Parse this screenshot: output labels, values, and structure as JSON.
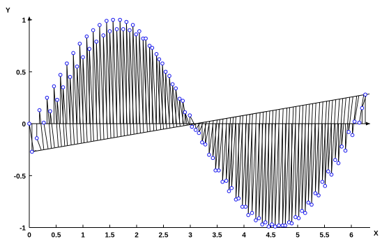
{
  "chart_data": {
    "type": "stem-line",
    "xlabel": "X",
    "ylabel": "Y",
    "xlim": [
      0,
      6.35
    ],
    "ylim": [
      -1,
      1
    ],
    "x_ticks": [
      0,
      0.5,
      1,
      1.5,
      2,
      2.5,
      3,
      3.5,
      4,
      4.5,
      5,
      5.5,
      6
    ],
    "x_tick_labels": [
      "0",
      "0.5",
      "1",
      "1.5",
      "2",
      "2.5",
      "3",
      "3.5",
      "4",
      "4.5",
      "5",
      "5.5",
      "6"
    ],
    "y_ticks": [
      -1,
      -0.5,
      0,
      0.5,
      1
    ],
    "y_tick_labels": [
      "-1",
      "-0.5",
      "0",
      "0.5",
      "1"
    ],
    "series": [
      {
        "x": [
          0,
          0.05,
          0.14,
          0.19,
          0.27,
          0.33,
          0.39,
          0.46,
          0.52,
          0.58,
          0.63,
          0.7,
          0.76,
          0.82,
          0.89,
          0.94,
          1.0,
          1.07,
          1.12,
          1.19,
          1.25,
          1.31,
          1.38,
          1.44,
          1.5,
          1.56,
          1.63,
          1.69,
          1.75,
          1.81,
          1.87,
          1.93,
          1.99,
          2.05,
          2.12,
          2.17,
          2.24,
          2.29,
          2.37,
          2.42,
          2.48,
          2.54,
          2.61,
          2.67,
          2.73,
          2.8,
          2.86,
          2.9,
          2.99,
          3.03,
          3.1,
          3.16,
          3.22,
          3.28,
          3.35,
          3.42,
          3.47,
          3.53,
          3.6,
          3.67,
          3.72,
          3.77,
          3.85,
          3.9,
          3.97,
          4.03,
          4.08,
          4.15,
          4.22,
          4.28,
          4.34,
          4.4,
          4.46,
          4.52,
          4.58,
          4.65,
          4.72,
          4.77,
          4.84,
          4.89,
          4.96,
          5.02,
          5.08,
          5.14,
          5.2,
          5.26,
          5.33,
          5.39,
          5.46,
          5.51,
          5.57,
          5.63,
          5.7,
          5.76,
          5.82,
          5.89,
          5.95,
          6.02,
          6.06,
          6.15,
          6.2,
          6.26
        ],
        "y": [
          0,
          -0.27,
          -0.14,
          0.13,
          0.01,
          0.25,
          0.12,
          0.36,
          0.23,
          0.47,
          0.35,
          0.58,
          0.45,
          0.68,
          0.55,
          0.77,
          0.64,
          0.84,
          0.72,
          0.9,
          0.79,
          0.95,
          0.85,
          0.99,
          0.89,
          1.0,
          0.91,
          1.0,
          0.91,
          0.98,
          0.9,
          0.95,
          0.86,
          0.89,
          0.82,
          0.82,
          0.75,
          0.73,
          0.67,
          0.62,
          0.58,
          0.5,
          0.46,
          0.38,
          0.34,
          0.24,
          0.22,
          0.11,
          0.08,
          -0.03,
          -0.06,
          -0.09,
          -0.18,
          -0.2,
          -0.3,
          -0.33,
          -0.45,
          -0.45,
          -0.56,
          -0.55,
          -0.65,
          -0.62,
          -0.73,
          -0.72,
          -0.8,
          -0.8,
          -0.88,
          -0.86,
          -0.93,
          -0.91,
          -0.97,
          -0.95,
          -0.99,
          -0.97,
          -0.99,
          -0.98,
          -0.98,
          -0.98,
          -0.95,
          -0.96,
          -0.9,
          -0.91,
          -0.84,
          -0.86,
          -0.76,
          -0.78,
          -0.67,
          -0.69,
          -0.56,
          -0.6,
          -0.46,
          -0.49,
          -0.35,
          -0.38,
          -0.22,
          -0.26,
          -0.08,
          -0.11,
          0.02,
          0.01,
          0.15,
          0.28
        ]
      }
    ],
    "grid": false
  },
  "colors": {
    "marker_stroke": "#1010ee",
    "marker_fill": "#ffffff",
    "line": "#000000",
    "axis": "#000000"
  }
}
